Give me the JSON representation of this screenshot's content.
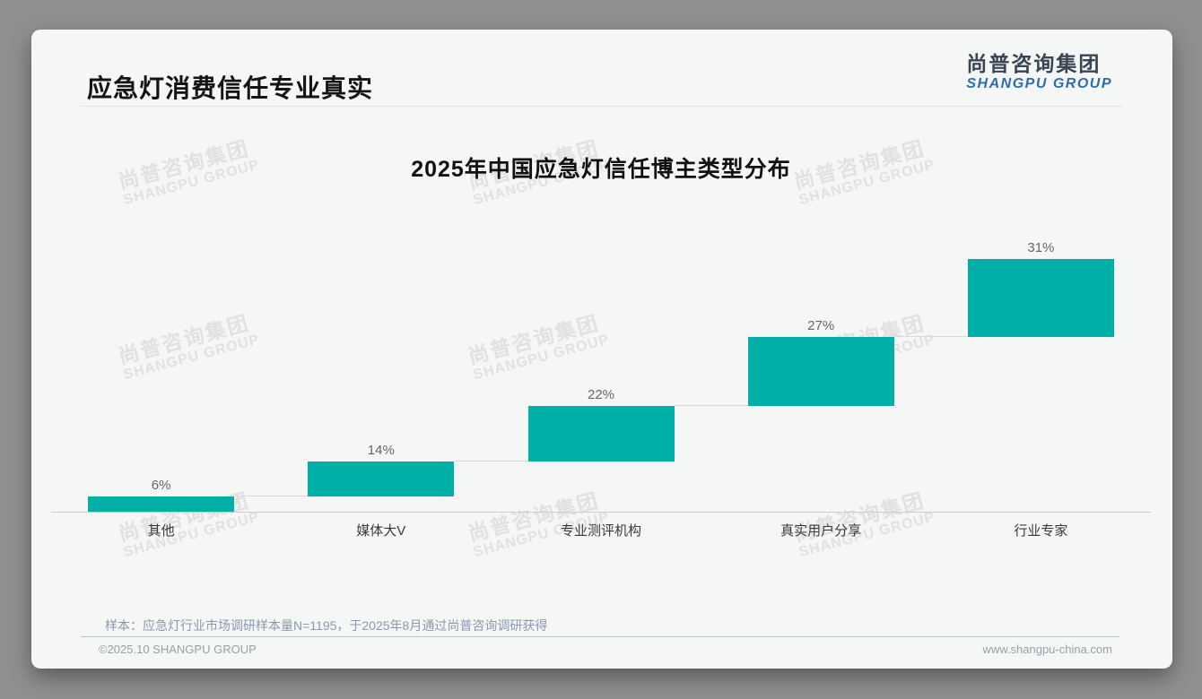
{
  "header": {
    "title": "应急灯消费信任专业真实"
  },
  "logo": {
    "cn": "尚普咨询集团",
    "en": "SHANGPU GROUP"
  },
  "watermark": {
    "line1": "尚普咨询集团",
    "line2": "SHANGPU GROUP"
  },
  "chart_data": {
    "type": "bar",
    "subtype": "waterfall",
    "title": "2025年中国应急灯信任博主类型分布",
    "categories": [
      "其他",
      "媒体大V",
      "专业测评机构",
      "真实用户分享",
      "行业专家"
    ],
    "values": [
      6,
      14,
      22,
      27,
      31
    ],
    "value_labels": [
      "6%",
      "14%",
      "22%",
      "27%",
      "31%"
    ],
    "unit": "%",
    "cumulative": true,
    "ylim": [
      0,
      100
    ],
    "grid": false,
    "legend": "none",
    "bar_color": "#00b0a6",
    "connector_color": "#d9d9d9",
    "xlabel": "",
    "ylabel": ""
  },
  "footnote": "样本：应急灯行业市场调研样本量N=1195，于2025年8月通过尚普咨询调研获得",
  "footer": {
    "left": "©2025.10 SHANGPU GROUP",
    "right": "www.shangpu-china.com"
  },
  "colors": {
    "accent_teal": "#00b0a6",
    "logo_blue": "#2f6bad",
    "card_bg": "#f5f6f6",
    "page_bg": "#8f9092"
  }
}
